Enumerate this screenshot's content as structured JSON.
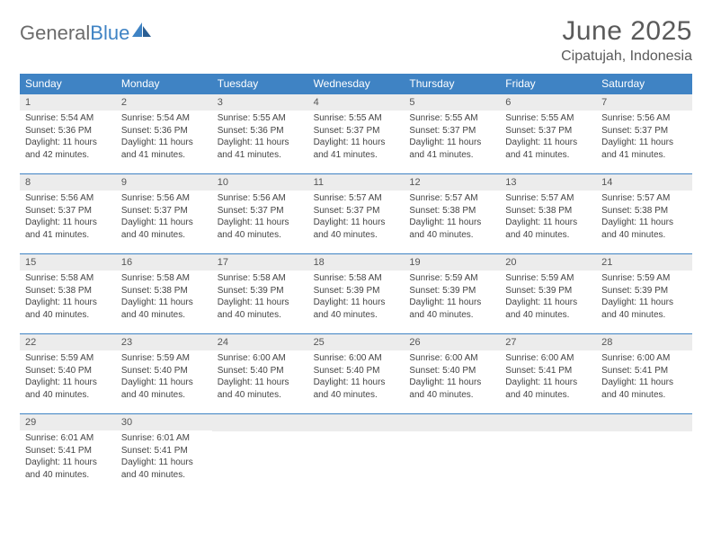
{
  "brand": {
    "part1": "General",
    "part2": "Blue"
  },
  "title": "June 2025",
  "subtitle": "Cipatujah, Indonesia",
  "colors": {
    "header_bg": "#3f83c4",
    "daynum_bg": "#ececec",
    "text": "#444444",
    "rule": "#3f83c4"
  },
  "weekdays": [
    "Sunday",
    "Monday",
    "Tuesday",
    "Wednesday",
    "Thursday",
    "Friday",
    "Saturday"
  ],
  "days": [
    {
      "n": "1",
      "sr": "5:54 AM",
      "ss": "5:36 PM",
      "dh": "11",
      "dm": "42"
    },
    {
      "n": "2",
      "sr": "5:54 AM",
      "ss": "5:36 PM",
      "dh": "11",
      "dm": "41"
    },
    {
      "n": "3",
      "sr": "5:55 AM",
      "ss": "5:36 PM",
      "dh": "11",
      "dm": "41"
    },
    {
      "n": "4",
      "sr": "5:55 AM",
      "ss": "5:37 PM",
      "dh": "11",
      "dm": "41"
    },
    {
      "n": "5",
      "sr": "5:55 AM",
      "ss": "5:37 PM",
      "dh": "11",
      "dm": "41"
    },
    {
      "n": "6",
      "sr": "5:55 AM",
      "ss": "5:37 PM",
      "dh": "11",
      "dm": "41"
    },
    {
      "n": "7",
      "sr": "5:56 AM",
      "ss": "5:37 PM",
      "dh": "11",
      "dm": "41"
    },
    {
      "n": "8",
      "sr": "5:56 AM",
      "ss": "5:37 PM",
      "dh": "11",
      "dm": "41"
    },
    {
      "n": "9",
      "sr": "5:56 AM",
      "ss": "5:37 PM",
      "dh": "11",
      "dm": "40"
    },
    {
      "n": "10",
      "sr": "5:56 AM",
      "ss": "5:37 PM",
      "dh": "11",
      "dm": "40"
    },
    {
      "n": "11",
      "sr": "5:57 AM",
      "ss": "5:37 PM",
      "dh": "11",
      "dm": "40"
    },
    {
      "n": "12",
      "sr": "5:57 AM",
      "ss": "5:38 PM",
      "dh": "11",
      "dm": "40"
    },
    {
      "n": "13",
      "sr": "5:57 AM",
      "ss": "5:38 PM",
      "dh": "11",
      "dm": "40"
    },
    {
      "n": "14",
      "sr": "5:57 AM",
      "ss": "5:38 PM",
      "dh": "11",
      "dm": "40"
    },
    {
      "n": "15",
      "sr": "5:58 AM",
      "ss": "5:38 PM",
      "dh": "11",
      "dm": "40"
    },
    {
      "n": "16",
      "sr": "5:58 AM",
      "ss": "5:38 PM",
      "dh": "11",
      "dm": "40"
    },
    {
      "n": "17",
      "sr": "5:58 AM",
      "ss": "5:39 PM",
      "dh": "11",
      "dm": "40"
    },
    {
      "n": "18",
      "sr": "5:58 AM",
      "ss": "5:39 PM",
      "dh": "11",
      "dm": "40"
    },
    {
      "n": "19",
      "sr": "5:59 AM",
      "ss": "5:39 PM",
      "dh": "11",
      "dm": "40"
    },
    {
      "n": "20",
      "sr": "5:59 AM",
      "ss": "5:39 PM",
      "dh": "11",
      "dm": "40"
    },
    {
      "n": "21",
      "sr": "5:59 AM",
      "ss": "5:39 PM",
      "dh": "11",
      "dm": "40"
    },
    {
      "n": "22",
      "sr": "5:59 AM",
      "ss": "5:40 PM",
      "dh": "11",
      "dm": "40"
    },
    {
      "n": "23",
      "sr": "5:59 AM",
      "ss": "5:40 PM",
      "dh": "11",
      "dm": "40"
    },
    {
      "n": "24",
      "sr": "6:00 AM",
      "ss": "5:40 PM",
      "dh": "11",
      "dm": "40"
    },
    {
      "n": "25",
      "sr": "6:00 AM",
      "ss": "5:40 PM",
      "dh": "11",
      "dm": "40"
    },
    {
      "n": "26",
      "sr": "6:00 AM",
      "ss": "5:40 PM",
      "dh": "11",
      "dm": "40"
    },
    {
      "n": "27",
      "sr": "6:00 AM",
      "ss": "5:41 PM",
      "dh": "11",
      "dm": "40"
    },
    {
      "n": "28",
      "sr": "6:00 AM",
      "ss": "5:41 PM",
      "dh": "11",
      "dm": "40"
    },
    {
      "n": "29",
      "sr": "6:01 AM",
      "ss": "5:41 PM",
      "dh": "11",
      "dm": "40"
    },
    {
      "n": "30",
      "sr": "6:01 AM",
      "ss": "5:41 PM",
      "dh": "11",
      "dm": "40"
    }
  ],
  "labels": {
    "sunrise": "Sunrise:",
    "sunset": "Sunset:",
    "daylight_prefix": "Daylight:",
    "hours_word": "hours",
    "and_word": "and",
    "minutes_word": "minutes."
  }
}
